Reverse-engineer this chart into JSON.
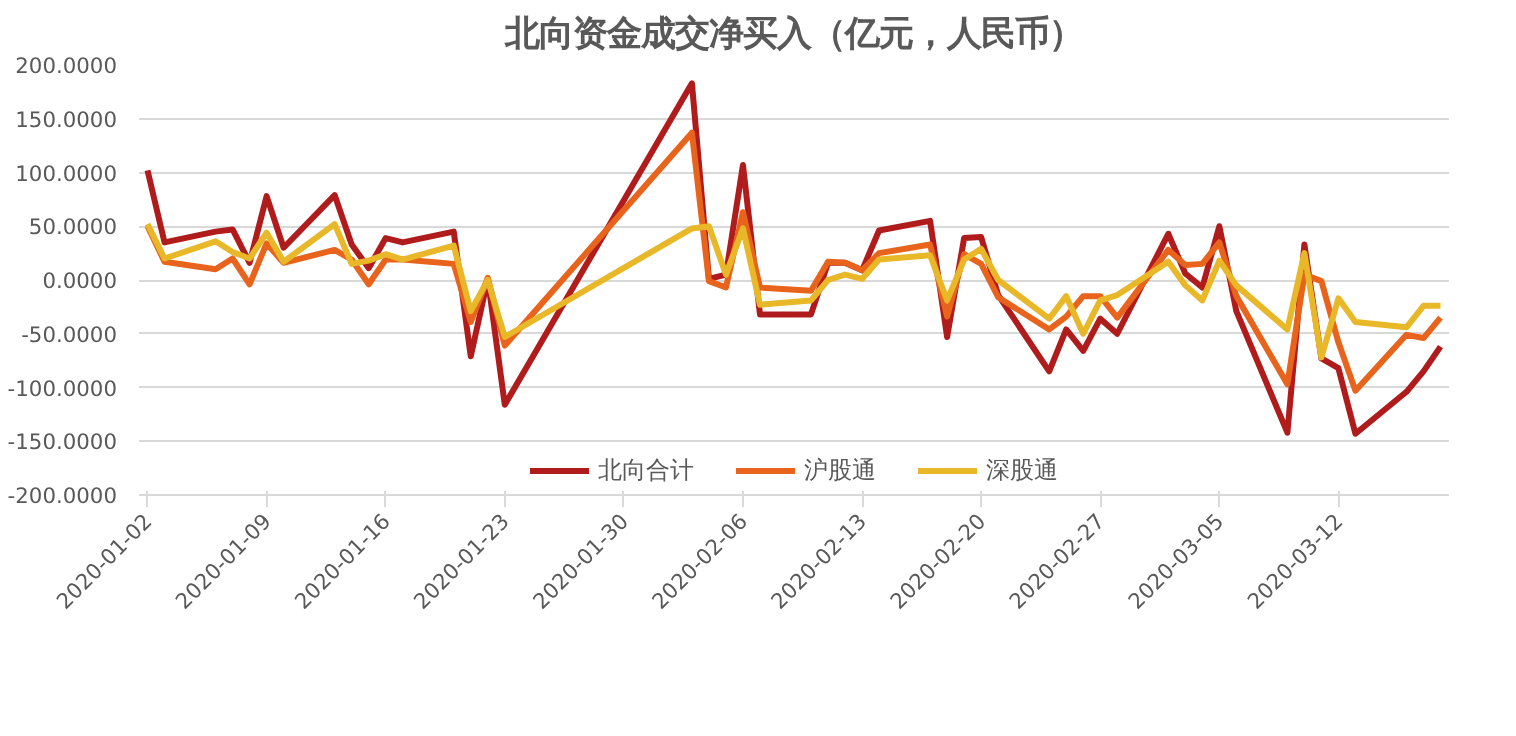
{
  "chart_data": {
    "type": "line",
    "title": "北向资金成交净买入（亿元，人民币）",
    "x": [
      "2020-01-02",
      "2020-01-03",
      "2020-01-06",
      "2020-01-07",
      "2020-01-08",
      "2020-01-09",
      "2020-01-10",
      "2020-01-13",
      "2020-01-14",
      "2020-01-15",
      "2020-01-16",
      "2020-01-17",
      "2020-01-20",
      "2020-01-21",
      "2020-01-22",
      "2020-01-23",
      "2020-02-03",
      "2020-02-04",
      "2020-02-05",
      "2020-02-06",
      "2020-02-07",
      "2020-02-10",
      "2020-02-11",
      "2020-02-12",
      "2020-02-13",
      "2020-02-14",
      "2020-02-17",
      "2020-02-18",
      "2020-02-19",
      "2020-02-20",
      "2020-02-21",
      "2020-02-24",
      "2020-02-25",
      "2020-02-26",
      "2020-02-27",
      "2020-02-28",
      "2020-03-02",
      "2020-03-03",
      "2020-03-04",
      "2020-03-05",
      "2020-03-06",
      "2020-03-09",
      "2020-03-10",
      "2020-03-11",
      "2020-03-12",
      "2020-03-13",
      "2020-03-16",
      "2020-03-17",
      "2020-03-18"
    ],
    "series": [
      {
        "name": "北向合计",
        "color": "#b01c1c",
        "values": [
          102,
          35,
          45,
          47,
          16,
          78,
          30,
          79,
          33,
          11,
          39,
          35,
          45,
          -71,
          1,
          -116,
          183,
          1,
          5,
          107,
          -32,
          -32,
          16,
          16,
          9,
          46,
          55,
          -53,
          39,
          40,
          -14,
          -85,
          -46,
          -66,
          -36,
          -50,
          43,
          6,
          -7,
          50,
          -29,
          -142,
          33,
          -73,
          -82,
          -143,
          -104,
          -85,
          -62
        ]
      },
      {
        "name": "沪股通",
        "color": "#e8641c",
        "values": [
          50,
          17,
          10,
          20,
          -4,
          34,
          16,
          28,
          19,
          -4,
          19,
          19,
          15,
          -39,
          2,
          -61,
          137,
          -1,
          -7,
          63,
          -7,
          -10,
          17,
          16,
          9,
          25,
          33,
          -34,
          24,
          15,
          -16,
          -46,
          -34,
          -15,
          -15,
          -35,
          28,
          14,
          15,
          35,
          -15,
          -97,
          5,
          -1,
          -58,
          -103,
          -51,
          -54,
          -35
        ]
      },
      {
        "name": "深股通",
        "color": "#e8b828",
        "values": [
          52,
          20,
          36,
          26,
          20,
          44,
          17,
          52,
          15,
          18,
          24,
          19,
          32,
          -29,
          0,
          -53,
          48,
          50,
          5,
          48,
          -23,
          -19,
          0,
          5,
          1,
          19,
          23,
          -19,
          19,
          29,
          0,
          -36,
          -15,
          -50,
          -19,
          -14,
          17,
          -5,
          -19,
          18,
          -5,
          -46,
          25,
          -72,
          -17,
          -39,
          -44,
          -24,
          -24
        ]
      }
    ],
    "xlim": [
      "2020-01-01T12:00",
      "2020-03-18T12:00"
    ],
    "xticks": [
      "2020-01-02",
      "2020-01-09",
      "2020-01-16",
      "2020-01-23",
      "2020-01-30",
      "2020-02-06",
      "2020-02-13",
      "2020-02-20",
      "2020-02-27",
      "2020-03-05",
      "2020-03-12"
    ],
    "ylim": [
      -200,
      200
    ],
    "yticks": [
      {
        "value": -200,
        "label": "-200.0000"
      },
      {
        "value": -150,
        "label": "-150.0000"
      },
      {
        "value": -100,
        "label": "-100.0000"
      },
      {
        "value": -50,
        "label": "-50.0000"
      },
      {
        "value": 0,
        "label": "0.0000"
      },
      {
        "value": 50,
        "label": "50.0000"
      },
      {
        "value": 100,
        "label": "100.0000"
      },
      {
        "value": 150,
        "label": "150.0000"
      },
      {
        "value": 200,
        "label": "200.0000"
      }
    ],
    "grid": "y",
    "legend": "bottom",
    "marker": "none",
    "line_style": "solid"
  }
}
